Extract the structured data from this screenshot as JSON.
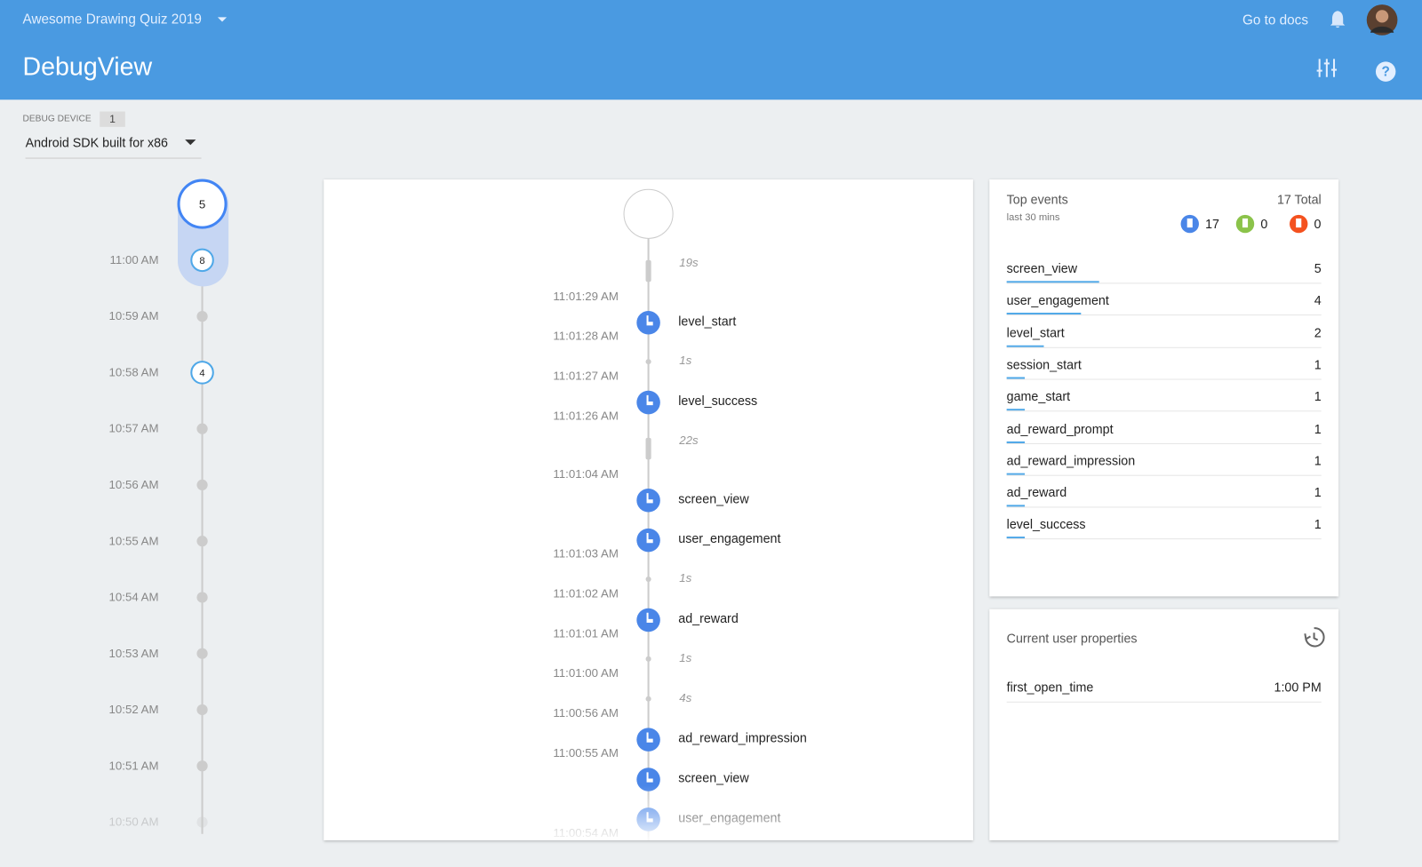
{
  "header": {
    "project": "Awesome Drawing Quiz 2019",
    "docs_link": "Go to docs",
    "title": "DebugView"
  },
  "device": {
    "label": "DEBUG DEVICE",
    "count": 1,
    "name": "Android SDK built for x86"
  },
  "minutes": {
    "current_count": 5,
    "rows": [
      {
        "time": "11:00 AM",
        "count": 8
      },
      {
        "time": "10:59 AM"
      },
      {
        "time": "10:58 AM",
        "count": 4
      },
      {
        "time": "10:57 AM"
      },
      {
        "time": "10:56 AM"
      },
      {
        "time": "10:55 AM"
      },
      {
        "time": "10:54 AM"
      },
      {
        "time": "10:53 AM"
      },
      {
        "time": "10:52 AM"
      },
      {
        "time": "10:51 AM"
      },
      {
        "time": "10:50 AM"
      }
    ]
  },
  "stream": {
    "rows": [
      {
        "gap": "19s"
      },
      {
        "time": "11:01:29 AM"
      },
      {
        "event": "level_start"
      },
      {
        "time": "11:01:28 AM"
      },
      {
        "gap": "1s"
      },
      {
        "time": "11:01:27 AM"
      },
      {
        "event": "level_success"
      },
      {
        "time": "11:01:26 AM"
      },
      {
        "gap": "22s"
      },
      {
        "time": "11:01:04 AM"
      },
      {
        "event": "screen_view"
      },
      {
        "event": "user_engagement"
      },
      {
        "time": "11:01:03 AM"
      },
      {
        "gap": "1s"
      },
      {
        "time": "11:01:02 AM"
      },
      {
        "event": "ad_reward"
      },
      {
        "time": "11:01:01 AM"
      },
      {
        "gap": "1s"
      },
      {
        "time": "11:01:00 AM"
      },
      {
        "gap": "4s"
      },
      {
        "time": "11:00:56 AM"
      },
      {
        "event": "ad_reward_impression"
      },
      {
        "time": "11:00:55 AM"
      },
      {
        "event": "screen_view"
      },
      {
        "event": "user_engagement"
      },
      {
        "time": "11:00:54 AM"
      }
    ]
  },
  "top_events": {
    "title": "Top events",
    "subtitle": "last 30 mins",
    "total": "17 Total",
    "counts": {
      "events": 17,
      "conversions": 0,
      "errors": 0
    },
    "rows": [
      {
        "name": "screen_view",
        "count": 5
      },
      {
        "name": "user_engagement",
        "count": 4
      },
      {
        "name": "level_start",
        "count": 2
      },
      {
        "name": "session_start",
        "count": 1
      },
      {
        "name": "game_start",
        "count": 1
      },
      {
        "name": "ad_reward_prompt",
        "count": 1
      },
      {
        "name": "ad_reward_impression",
        "count": 1
      },
      {
        "name": "ad_reward",
        "count": 1
      },
      {
        "name": "level_success",
        "count": 1
      }
    ]
  },
  "user_properties": {
    "title": "Current user properties",
    "rows": [
      {
        "name": "first_open_time",
        "value": "1:00 PM"
      }
    ]
  }
}
